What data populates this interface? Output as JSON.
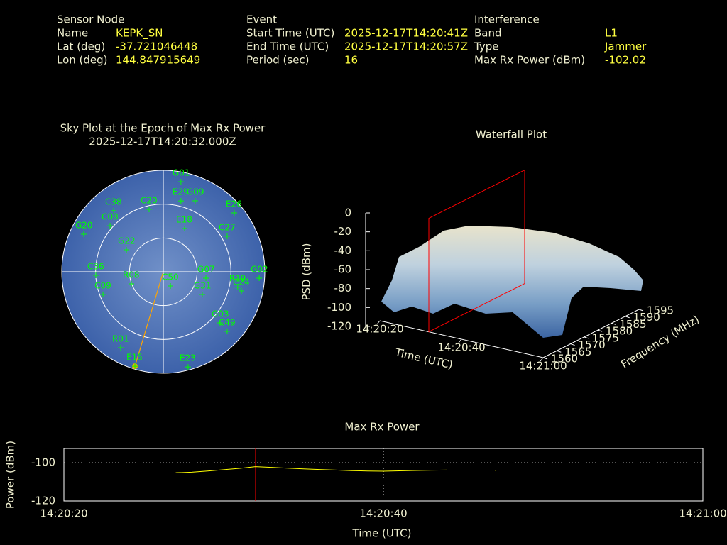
{
  "info": {
    "sensor": {
      "heading": "Sensor Node",
      "rows": [
        [
          "Name",
          "KEPK_SN"
        ],
        [
          "Lat (deg)",
          "-37.721046448"
        ],
        [
          "Lon (deg)",
          "144.847915649"
        ]
      ]
    },
    "event": {
      "heading": "Event",
      "rows": [
        [
          "Start Time (UTC)",
          "2025-12-17T14:20:41Z"
        ],
        [
          "End Time (UTC)",
          "2025-12-17T14:20:57Z"
        ],
        [
          "Period (sec)",
          "16"
        ]
      ]
    },
    "interference": {
      "heading": "Interference",
      "rows": [
        [
          "Band",
          "L1"
        ],
        [
          "Type",
          "Jammer"
        ],
        [
          "Max Rx Power (dBm)",
          "-102.02"
        ]
      ]
    }
  },
  "chart_data": [
    {
      "type": "skyplot",
      "title": "Sky Plot at the Epoch of Max Rx Power",
      "subtitle": "2025-12-17T14:20:32.000Z",
      "rlim": [
        90,
        0
      ],
      "rticks": [
        0,
        30,
        60
      ],
      "color": "#00ff00",
      "highlight": "E15",
      "highlight_color": "#ffa500",
      "satellites": [
        {
          "name": "G07",
          "azimuth": 98.5,
          "elevation": 51.8
        },
        {
          "name": "G02",
          "azimuth": 93.8,
          "elevation": 4.8
        },
        {
          "name": "R19",
          "azimuth": 101.8,
          "elevation": 22.6
        },
        {
          "name": "C27",
          "azimuth": 60.9,
          "elevation": 25.2
        },
        {
          "name": "E23",
          "azimuth": 165.4,
          "elevation": 2.8
        },
        {
          "name": "E15",
          "azimuth": 196.7,
          "elevation": 2.5
        },
        {
          "name": "R01",
          "azimuth": 209.3,
          "elevation": 12.8
        },
        {
          "name": "G03",
          "azimuth": 132,
          "elevation": 22.3
        },
        {
          "name": "C49",
          "azimuth": 133,
          "elevation": 12.6
        },
        {
          "name": "G09",
          "azimuth": 24.2,
          "elevation": 21
        },
        {
          "name": "E29",
          "azimuth": 14,
          "elevation": 25.2
        },
        {
          "name": "C20",
          "azimuth": 347.2,
          "elevation": 33.2
        },
        {
          "name": "C38",
          "azimuth": 320.9,
          "elevation": 20.2
        },
        {
          "name": "C08",
          "azimuth": 310.9,
          "elevation": 27.6
        },
        {
          "name": "G20",
          "azimuth": 295.3,
          "elevation": 12
        },
        {
          "name": "C36",
          "azimuth": 267,
          "elevation": 30.1
        },
        {
          "name": "G22",
          "azimuth": 300.8,
          "elevation": 51.9
        },
        {
          "name": "C50",
          "azimuth": 153.4,
          "elevation": 75.9
        },
        {
          "name": "G31",
          "azimuth": 120.2,
          "elevation": 50
        },
        {
          "name": "C24",
          "azimuth": 103.8,
          "elevation": 18.7
        },
        {
          "name": "E26",
          "azimuth": 50.3,
          "elevation": 8.2
        },
        {
          "name": "G01",
          "azimuth": 11.1,
          "elevation": 8.6
        },
        {
          "name": "E18",
          "azimuth": 26.2,
          "elevation": 47.2
        },
        {
          "name": "R08",
          "azimuth": 249.3,
          "elevation": 59.7
        },
        {
          "name": "C09",
          "azimuth": 249.4,
          "elevation": 32.9
        }
      ]
    },
    {
      "type": "surface",
      "title": "Waterfall Plot",
      "xlabel": "Time (UTC)",
      "ylabel": "Frequency (MHz)",
      "zlabel": "PSD (dBm)",
      "xlim": [
        "14:20:20",
        "14:21:00"
      ],
      "xticks": [
        "14:20:20",
        "14:20:40",
        "14:21:00"
      ],
      "ylim": [
        1560,
        1595
      ],
      "yticks": [
        1560,
        1565,
        1570,
        1575,
        1580,
        1585,
        1590,
        1595
      ],
      "zlim": [
        -120,
        0
      ],
      "zticks": [
        0,
        -20,
        -40,
        -60,
        -80,
        -100,
        -120
      ],
      "marker_color": "#ff0000"
    },
    {
      "type": "line",
      "title": "Max Rx Power",
      "xlabel": "Time (UTC)",
      "ylabel": "Power (dBm)",
      "x": [
        "14:20:27",
        "14:20:28",
        "14:20:29",
        "14:20:30",
        "14:20:31",
        "14:20:32",
        "14:20:33",
        "14:20:34",
        "14:20:35",
        "14:20:36",
        "14:20:37",
        "14:20:38",
        "14:20:39",
        "14:20:40",
        "14:20:41",
        "14:20:42",
        "14:20:43",
        "14:20:44",
        "14:20:45",
        "14:20:46",
        "14:20:47"
      ],
      "values": [
        -105.2,
        -104.9,
        -104.3,
        -103.6,
        -102.9,
        -102.02,
        -102.4,
        -102.8,
        -103.2,
        -103.5,
        -103.8,
        -104.1,
        -104.3,
        -104.4,
        -104.2,
        -104.0,
        -103.9,
        -103.8,
        null,
        null,
        -104.0
      ],
      "color": "#ffff00",
      "marker_color": "#ff0000",
      "xlim": [
        "14:20:20",
        "14:21:00"
      ],
      "xticks": [
        "14:20:20",
        "14:20:40",
        "14:21:00"
      ],
      "ylim": [
        -120,
        -92.5
      ],
      "yticks": [
        -100,
        -120
      ],
      "grid": true
    }
  ]
}
